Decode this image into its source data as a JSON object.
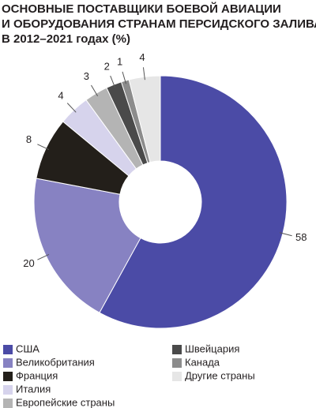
{
  "chart_data": {
    "type": "donut",
    "title": [
      "ОСНОВНЫЕ ПОСТАВЩИКИ БОЕВОЙ АВИАЦИИ",
      "И ОБОРУДОВАНИЯ СТРАНАМ ПЕРСИДСКОГО ЗАЛИВА",
      "В 2012–2021 годах (%)"
    ],
    "categories": [
      "США",
      "Великобритания",
      "Франция",
      "Италия",
      "Европейские страны",
      "Швейцария",
      "Канада",
      "Другие страны"
    ],
    "values": [
      58,
      20,
      8,
      4,
      3,
      2,
      1,
      4
    ],
    "colors": [
      "#4b4ba6",
      "#8782c2",
      "#231f1a",
      "#d6d3ec",
      "#b4b4b4",
      "#4a4a4a",
      "#8c8c8c",
      "#e6e6e6"
    ]
  }
}
